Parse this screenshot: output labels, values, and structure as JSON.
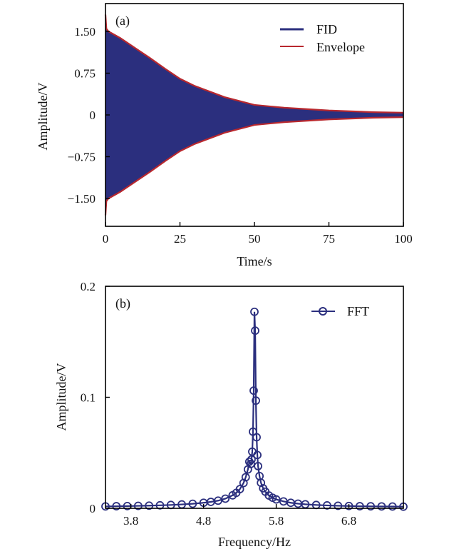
{
  "chart_data": [
    {
      "type": "area",
      "panel_label": "(a)",
      "xlabel": "Time/s",
      "ylabel": "Amplitude/V",
      "xlim": [
        0,
        100
      ],
      "ylim": [
        -2.0,
        2.0
      ],
      "xticks": [
        0,
        25,
        50,
        75,
        100
      ],
      "xtick_labels": [
        "0",
        "25",
        "50",
        "75",
        "100"
      ],
      "yticks": [
        1.5,
        0.75,
        0,
        -0.75,
        -1.5
      ],
      "ytick_labels": [
        "1.50",
        "0.75",
        "0",
        "−0.75",
        "−1.50"
      ],
      "grid": false,
      "legend_position": "top-right",
      "series": [
        {
          "name": "FID",
          "color": "#2b2f7e",
          "oscillation_frequency_hz": 5.5,
          "note_fill_between_envelope": true
        },
        {
          "name": "Envelope",
          "color": "#b8282e",
          "x": [
            0,
            0.3,
            1,
            5,
            10,
            15,
            20,
            25,
            30,
            40,
            50,
            60,
            75,
            90,
            100
          ],
          "y": [
            1.8,
            1.55,
            1.5,
            1.38,
            1.2,
            1.02,
            0.83,
            0.65,
            0.52,
            0.32,
            0.18,
            0.13,
            0.08,
            0.05,
            0.04
          ]
        }
      ]
    },
    {
      "type": "line",
      "panel_label": "(b)",
      "xlabel": "Frequency/Hz",
      "ylabel": "Amplitude/V",
      "xlim": [
        3.45,
        7.55
      ],
      "ylim": [
        0,
        0.2
      ],
      "xticks": [
        3.8,
        4.8,
        5.8,
        6.8
      ],
      "xtick_labels": [
        "3.8",
        "4.8",
        "5.8",
        "6.8"
      ],
      "yticks": [
        0,
        0.1,
        0.2
      ],
      "ytick_labels": [
        "0",
        "0.1",
        "0.2"
      ],
      "grid": false,
      "legend_position": "top-right",
      "series": [
        {
          "name": "FFT",
          "color": "#2b2f7e",
          "marker": "circle",
          "x": [
            3.45,
            3.6,
            3.75,
            3.9,
            4.05,
            4.2,
            4.35,
            4.5,
            4.65,
            4.8,
            4.9,
            5.0,
            5.1,
            5.2,
            5.25,
            5.3,
            5.35,
            5.38,
            5.41,
            5.43,
            5.45,
            5.46,
            5.47,
            5.48,
            5.49,
            5.5,
            5.51,
            5.52,
            5.53,
            5.54,
            5.55,
            5.57,
            5.59,
            5.62,
            5.65,
            5.7,
            5.75,
            5.8,
            5.9,
            6.0,
            6.1,
            6.2,
            6.35,
            6.5,
            6.65,
            6.8,
            6.95,
            7.1,
            7.25,
            7.4,
            7.55
          ],
          "y": [
            0.0017,
            0.0019,
            0.002,
            0.0022,
            0.0024,
            0.0027,
            0.003,
            0.0035,
            0.0041,
            0.005,
            0.0058,
            0.0069,
            0.0087,
            0.0117,
            0.0139,
            0.0173,
            0.0228,
            0.028,
            0.035,
            0.042,
            0.04,
            0.044,
            0.051,
            0.069,
            0.106,
            0.177,
            0.16,
            0.097,
            0.064,
            0.048,
            0.038,
            0.029,
            0.023,
            0.018,
            0.015,
            0.0115,
            0.0095,
            0.008,
            0.0062,
            0.005,
            0.0042,
            0.0036,
            0.003,
            0.0026,
            0.0023,
            0.0021,
            0.0019,
            0.0018,
            0.0017,
            0.0016,
            0.0015
          ]
        }
      ]
    }
  ]
}
